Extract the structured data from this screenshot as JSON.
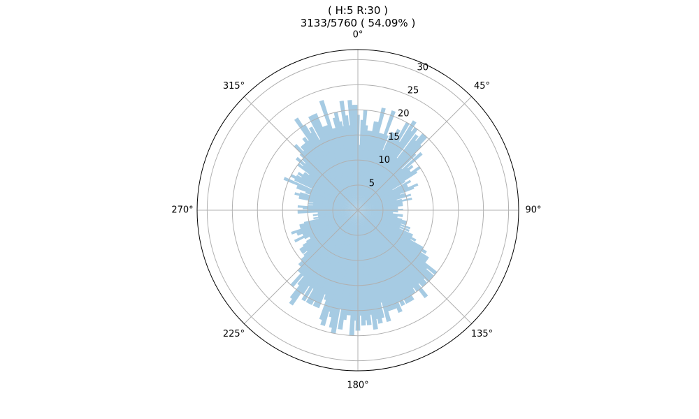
{
  "chart_data": {
    "type": "polar-bar",
    "title_line1": "( H:5  R:30 )",
    "title_line2": "3133/5760 ( 54.09% )",
    "theta_tick_labels": [
      "0°",
      "45°",
      "90°",
      "135°",
      "180°",
      "225°",
      "270°",
      "315°"
    ],
    "theta_tick_degrees": [
      0,
      45,
      90,
      135,
      180,
      225,
      270,
      315
    ],
    "theta_zero": "north",
    "theta_direction": "clockwise",
    "r_ticks": [
      5,
      10,
      15,
      20,
      25,
      30
    ],
    "r_tick_labels": [
      "5",
      "10",
      "15",
      "20",
      "25",
      "30"
    ],
    "r_max": 32,
    "grid": true,
    "bar_color": "#a6cbe3",
    "bar_width_deg": 2.5,
    "values": [
      19,
      13,
      18,
      20,
      17,
      16,
      16,
      16,
      18,
      18,
      21,
      16,
      16,
      16,
      21,
      16,
      13,
      17,
      17,
      18,
      16,
      20,
      16,
      21,
      19,
      20,
      13,
      19,
      18,
      20,
      20,
      18,
      16,
      12,
      17,
      13,
      14,
      13,
      13,
      15,
      14,
      11,
      8,
      12,
      11,
      11,
      11,
      13,
      12,
      9,
      10,
      10,
      11,
      8,
      9,
      11,
      9,
      9,
      9,
      9,
      8,
      8,
      8,
      9,
      8,
      8,
      7,
      7,
      9,
      9,
      8,
      8,
      9,
      10,
      10,
      10,
      9,
      11,
      9,
      11,
      9,
      12,
      12,
      13,
      12,
      15,
      16,
      15,
      17,
      17,
      17,
      20,
      18,
      20,
      20,
      20,
      19,
      20,
      20,
      19,
      22,
      20,
      19,
      20,
      20,
      21,
      21,
      21,
      20,
      21,
      20,
      22,
      21,
      21,
      21,
      21,
      23,
      19,
      22,
      23,
      22,
      24,
      21,
      23,
      22,
      23,
      21,
      24,
      22,
      25,
      21,
      21,
      22,
      24,
      20,
      25,
      24,
      22,
      21,
      24,
      23,
      19,
      18,
      21,
      21,
      20,
      21,
      21,
      18,
      21,
      18,
      20,
      23,
      22,
      19,
      17,
      20,
      17,
      17,
      16,
      16,
      15,
      14,
      13,
      14,
      14,
      14,
      13,
      12,
      11,
      11,
      12,
      14,
      12,
      12,
      13,
      13,
      14,
      12,
      12,
      12,
      11,
      8,
      9,
      8,
      8,
      9,
      8,
      8,
      12,
      12,
      10,
      11,
      12,
      10,
      9,
      10,
      9,
      10,
      12,
      12,
      13,
      12,
      10,
      11,
      13,
      13,
      16,
      10,
      14,
      15,
      14,
      13,
      14,
      13,
      13,
      12,
      15,
      14,
      16,
      14,
      15,
      16,
      18,
      16,
      17,
      17,
      17,
      18,
      17,
      22,
      20,
      18,
      19,
      16,
      21,
      21,
      21,
      18,
      18,
      18,
      23,
      17,
      17,
      19,
      20,
      18,
      17,
      22,
      19,
      17,
      22,
      21,
      21
    ]
  }
}
